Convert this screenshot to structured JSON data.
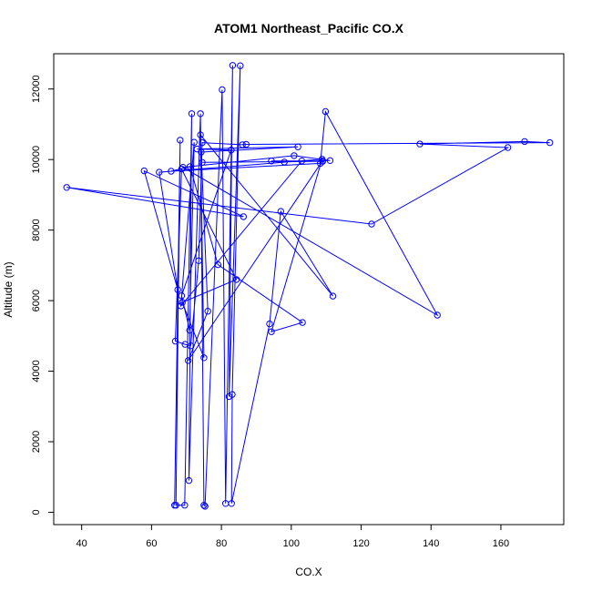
{
  "chart_data": {
    "type": "line",
    "title": "ATOM1 Northeast_Pacific CO.X",
    "xlabel": "CO.X",
    "ylabel": "Altitude (m)",
    "xlim": [
      32,
      178
    ],
    "ylim": [
      -350,
      13000
    ],
    "x_ticks": [
      40,
      60,
      80,
      100,
      120,
      140,
      160
    ],
    "y_ticks": [
      0,
      2000,
      4000,
      6000,
      8000,
      10000,
      12000
    ],
    "x_tick_labels": [
      "40",
      "60",
      "80",
      "100",
      "120",
      "140",
      "160"
    ],
    "y_tick_labels": [
      "0",
      "2000",
      "4000",
      "6000",
      "8000",
      "10000",
      "12000"
    ],
    "grid": false,
    "legend": "none",
    "series_color": "#0000ff",
    "series": [
      {
        "points": [
          [
            66.6,
            200
          ],
          [
            68.2,
            10550
          ],
          [
            67.0,
            200
          ],
          [
            69.5,
            200
          ],
          [
            71.5,
            11300
          ],
          [
            70.7,
            900
          ],
          [
            74.0,
            11300
          ],
          [
            75.0,
            200
          ],
          [
            75.3,
            170
          ],
          [
            80.2,
            11980
          ],
          [
            81.2,
            250
          ],
          [
            83.2,
            12670
          ],
          [
            82.2,
            3280
          ],
          [
            85.4,
            12660
          ],
          [
            83.1,
            3340
          ],
          [
            82.9,
            250
          ],
          [
            93.8,
            5340
          ],
          [
            97.0,
            8530
          ],
          [
            111.9,
            6130
          ],
          [
            74.0,
            10700
          ],
          [
            75.0,
            4380
          ],
          [
            68.8,
            5950
          ],
          [
            84.3,
            6600
          ],
          [
            68.6,
            9730
          ],
          [
            66.8,
            4850
          ],
          [
            69.6,
            4760
          ],
          [
            71.2,
            4720
          ],
          [
            73.5,
            7130
          ],
          [
            74.5,
            10480
          ],
          [
            86.0,
            10420
          ],
          [
            87.1,
            10430
          ],
          [
            174.0,
            10480
          ],
          [
            166.8,
            10510
          ],
          [
            136.8,
            10440
          ],
          [
            162.0,
            10340
          ],
          [
            123.0,
            8170
          ],
          [
            35.7,
            9210
          ],
          [
            86.3,
            8380
          ],
          [
            57.9,
            9680
          ],
          [
            67.5,
            6310
          ],
          [
            62.2,
            9640
          ],
          [
            108.8,
            10010
          ],
          [
            94.3,
            5120
          ],
          [
            103.2,
            5380
          ],
          [
            79.0,
            7020
          ],
          [
            71.0,
            9800
          ],
          [
            65.6,
            9670
          ],
          [
            108.3,
            9890
          ],
          [
            109.8,
            11360
          ],
          [
            141.8,
            5590
          ],
          [
            69.0,
            9780
          ],
          [
            100.8,
            10110
          ],
          [
            111.1,
            9970
          ],
          [
            98.0,
            9930
          ],
          [
            94.3,
            9960
          ],
          [
            108.9,
            9960
          ],
          [
            70.5,
            4300
          ],
          [
            76.1,
            5700
          ],
          [
            74.2,
            10210
          ],
          [
            101.9,
            10360
          ],
          [
            73.0,
            10300
          ],
          [
            82.8,
            10270
          ],
          [
            68.6,
            6140
          ],
          [
            70.9,
            5160
          ],
          [
            72.2,
            10490
          ],
          [
            68.4,
            5850
          ],
          [
            103.0,
            9960
          ],
          [
            109.0,
            9950
          ],
          [
            74.5,
            9920
          ]
        ]
      }
    ]
  }
}
